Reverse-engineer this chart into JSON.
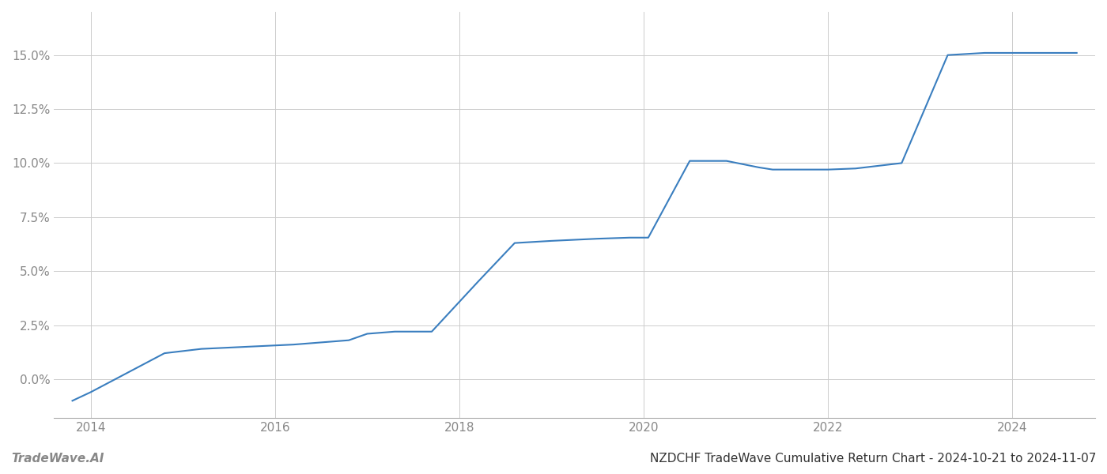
{
  "title": "NZDCHF TradeWave Cumulative Return Chart - 2024-10-21 to 2024-11-07",
  "watermark": "TradeWave.AI",
  "line_color": "#3a7ebf",
  "line_width": 1.5,
  "background_color": "#ffffff",
  "grid_color": "#cccccc",
  "x_years": [
    2013.8,
    2014.0,
    2014.8,
    2015.2,
    2015.7,
    2016.2,
    2016.8,
    2017.0,
    2017.3,
    2017.7,
    2018.2,
    2018.6,
    2019.0,
    2019.5,
    2019.85,
    2020.05,
    2020.5,
    2020.9,
    2021.25,
    2021.4,
    2022.0,
    2022.3,
    2022.8,
    2023.3,
    2023.7,
    2024.0,
    2024.7
  ],
  "y_values": [
    -1.0,
    -0.6,
    1.2,
    1.4,
    1.5,
    1.6,
    1.8,
    2.1,
    2.2,
    2.2,
    4.5,
    6.3,
    6.4,
    6.5,
    6.55,
    6.55,
    10.1,
    10.1,
    9.8,
    9.7,
    9.7,
    9.75,
    10.0,
    15.0,
    15.1,
    15.1,
    15.1
  ],
  "xlim": [
    2013.6,
    2024.9
  ],
  "ylim": [
    -1.8,
    17.0
  ],
  "yticks": [
    0.0,
    2.5,
    5.0,
    7.5,
    10.0,
    12.5,
    15.0
  ],
  "ytick_labels": [
    "0.0%",
    "2.5%",
    "5.0%",
    "7.5%",
    "10.0%",
    "12.5%",
    "15.0%"
  ],
  "xtick_years": [
    2014,
    2016,
    2018,
    2020,
    2022,
    2024
  ],
  "title_fontsize": 11,
  "tick_fontsize": 11,
  "watermark_fontsize": 11
}
